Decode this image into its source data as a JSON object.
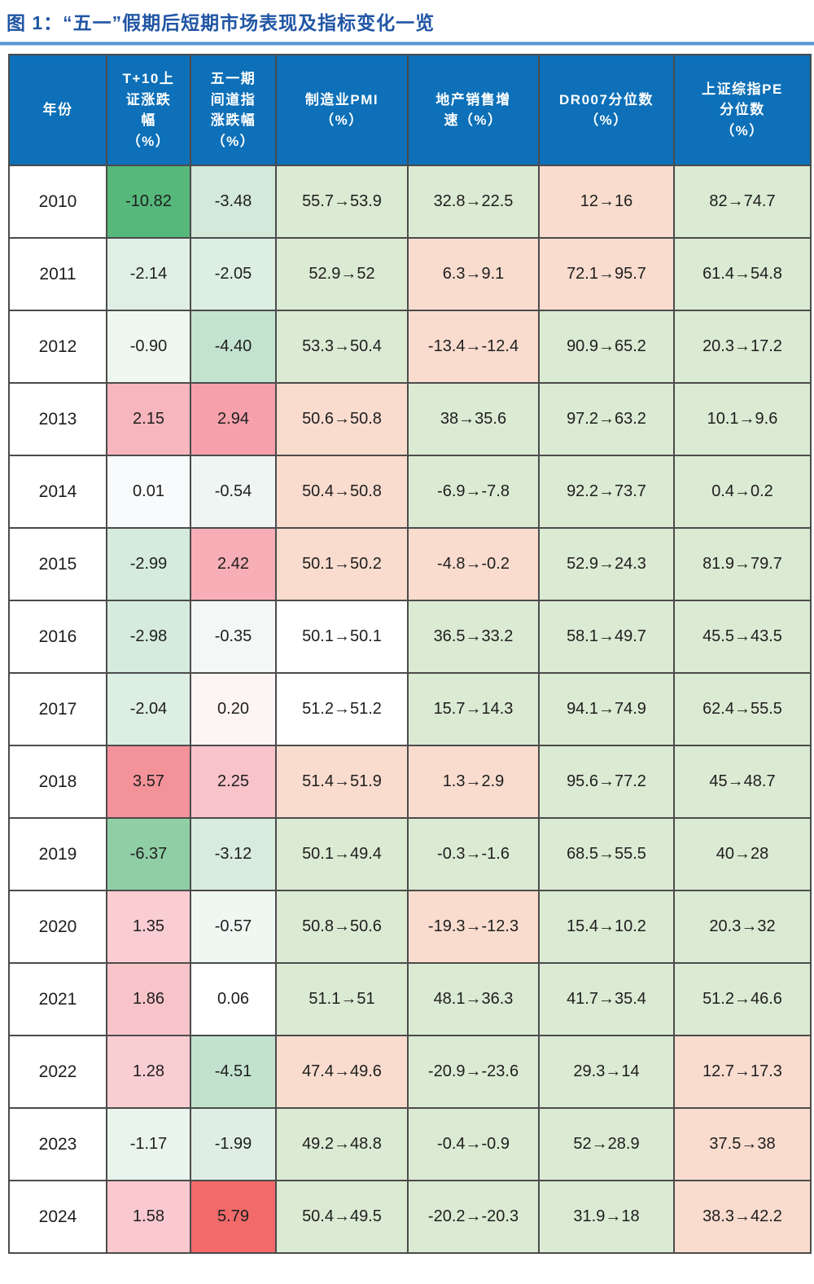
{
  "title": "图 1：“五一”假期后短期市场表现及指标变化一览",
  "colors": {
    "title_blue": "#2156a4",
    "rule_blue": "#4f94cf",
    "header_bg": "#0d70b8",
    "header_text": "#ffffff",
    "cell_green": "#dbead3",
    "cell_salmon": "#f9dcce",
    "border": "#4b4b4b"
  },
  "chart_data": {
    "type": "table",
    "title": "图 1：“五一”假期后短期市场表现及指标变化一览",
    "columns": [
      {
        "label": "年份"
      },
      {
        "label": "T+10上\n证涨跌\n幅\n（%）"
      },
      {
        "label": "五一期\n间道指\n涨跌幅\n（%）"
      },
      {
        "label": "制造业PMI\n（%）"
      },
      {
        "label": "地产销售增\n速（%）"
      },
      {
        "label": "DR007分位数\n（%）"
      },
      {
        "label": "上证综指PE\n分位数\n（%）"
      }
    ],
    "rows": [
      {
        "year": "2010",
        "values": [
          "-10.82",
          "-3.48",
          "55.7→53.9",
          "32.8→22.5",
          "12→16",
          "82→74.7"
        ],
        "cell_colors": [
          "#56b87b",
          "#d3e9da",
          "#dbead3",
          "#dbead3",
          "#f9dcce",
          "#dbead3"
        ]
      },
      {
        "year": "2011",
        "values": [
          "-2.14",
          "-2.05",
          "52.9→52",
          "6.3→9.1",
          "72.1→95.7",
          "61.4→54.8"
        ],
        "cell_colors": [
          "#e0efe6",
          "#ddeee3",
          "#dbead3",
          "#f9dcce",
          "#f9dcce",
          "#dbead3"
        ]
      },
      {
        "year": "2012",
        "values": [
          "-0.90",
          "-4.40",
          "53.3→50.4",
          "-13.4→-12.4",
          "90.9→65.2",
          "20.3→17.2"
        ],
        "cell_colors": [
          "#eff7f1",
          "#c3e3cf",
          "#dbead3",
          "#f9dcce",
          "#dbead3",
          "#dbead3"
        ]
      },
      {
        "year": "2013",
        "values": [
          "2.15",
          "2.94",
          "50.6→50.8",
          "38→35.6",
          "97.2→63.2",
          "10.1→9.6"
        ],
        "cell_colors": [
          "#f7b6bd",
          "#f5a0aa",
          "#f9dcce",
          "#dbead3",
          "#dbead3",
          "#dbead3"
        ]
      },
      {
        "year": "2014",
        "values": [
          "0.01",
          "-0.54",
          "50.4→50.8",
          "-6.9→-7.8",
          "92.2→73.7",
          "0.4→0.2"
        ],
        "cell_colors": [
          "#f8fafc",
          "#eff5f3",
          "#f9dcce",
          "#dbead3",
          "#dbead3",
          "#dbead3"
        ]
      },
      {
        "year": "2015",
        "values": [
          "-2.99",
          "2.42",
          "50.1→50.2",
          "-4.8→-0.2",
          "52.9→24.3",
          "81.9→79.7"
        ],
        "cell_colors": [
          "#d5ebdd",
          "#f7aeb6",
          "#f9dcce",
          "#f9dcce",
          "#dbead3",
          "#dbead3"
        ]
      },
      {
        "year": "2016",
        "values": [
          "-2.98",
          "-0.35",
          "50.1→50.1",
          "36.5→33.2",
          "58.1→49.7",
          "45.5→43.5"
        ],
        "cell_colors": [
          "#d5ebdd",
          "#f3f8f6",
          "#ffffff",
          "#dbead3",
          "#dbead3",
          "#dbead3"
        ]
      },
      {
        "year": "2017",
        "values": [
          "-2.04",
          "0.20",
          "51.2→51.2",
          "15.7→14.3",
          "94.1→74.9",
          "62.4→55.5"
        ],
        "cell_colors": [
          "#ddeee3",
          "#fdf4f4",
          "#ffffff",
          "#dbead3",
          "#dbead3",
          "#dbead3"
        ]
      },
      {
        "year": "2018",
        "values": [
          "3.57",
          "2.25",
          "51.4→51.9",
          "1.3→2.9",
          "95.6→77.2",
          "45→48.7"
        ],
        "cell_colors": [
          "#f4929a",
          "#f8c3c9",
          "#f9dcce",
          "#f9dcce",
          "#dbead3",
          "#dbead3"
        ]
      },
      {
        "year": "2019",
        "values": [
          "-6.37",
          "-3.12",
          "50.1→49.4",
          "-0.3→-1.6",
          "68.5→55.5",
          "40→28"
        ],
        "cell_colors": [
          "#90cfa5",
          "#d7ebde",
          "#dbead3",
          "#dbead3",
          "#dbead3",
          "#dbead3"
        ]
      },
      {
        "year": "2020",
        "values": [
          "1.35",
          "-0.57",
          "50.8→50.6",
          "-19.3→-12.3",
          "15.4→10.2",
          "20.3→32"
        ],
        "cell_colors": [
          "#f9cdd2",
          "#eff7f2",
          "#dbead3",
          "#f9dcce",
          "#dbead3",
          "#dbead3"
        ]
      },
      {
        "year": "2021",
        "values": [
          "1.86",
          "0.06",
          "51.1→51",
          "48.1→36.3",
          "41.7→35.4",
          "51.2→46.6"
        ],
        "cell_colors": [
          "#f8c4ca",
          "#fefefe",
          "#dbead3",
          "#dbead3",
          "#dbead3",
          "#dbead3"
        ]
      },
      {
        "year": "2022",
        "values": [
          "1.28",
          "-4.51",
          "47.4→49.6",
          "-20.9→-23.6",
          "29.3→14",
          "12.7→17.3"
        ],
        "cell_colors": [
          "#f9ced3",
          "#c2e2ce",
          "#f9dcce",
          "#dbead3",
          "#dbead3",
          "#f9dcce"
        ]
      },
      {
        "year": "2023",
        "values": [
          "-1.17",
          "-1.99",
          "49.2→48.8",
          "-0.4→-0.9",
          "52→28.9",
          "37.5→38"
        ],
        "cell_colors": [
          "#e9f4ec",
          "#deeee4",
          "#dbead3",
          "#dbead3",
          "#dbead3",
          "#f9dcce"
        ]
      },
      {
        "year": "2024",
        "values": [
          "1.58",
          "5.79",
          "50.4→49.5",
          "-20.2→-20.3",
          "31.9→18",
          "38.3→42.2"
        ],
        "cell_colors": [
          "#f9c9cf",
          "#f26a6a",
          "#dbead3",
          "#dbead3",
          "#dbead3",
          "#f9dcce"
        ]
      }
    ]
  }
}
